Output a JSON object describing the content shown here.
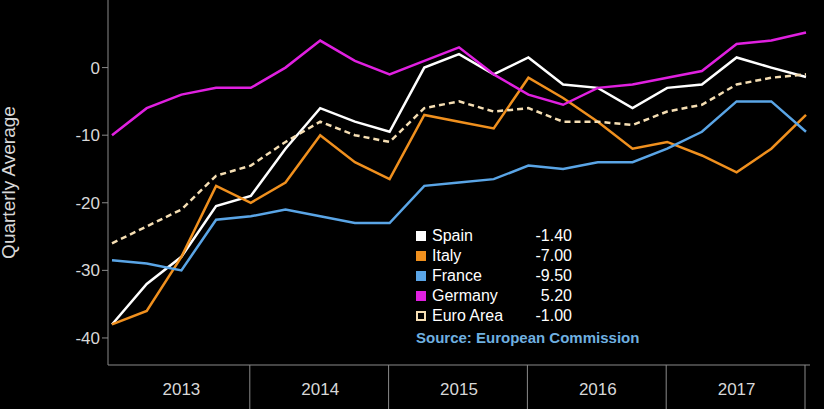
{
  "chart_data": {
    "type": "line",
    "y_label": "Quarterly Average",
    "source": "Source: European Commission",
    "legend": "lower center",
    "grid": false,
    "categories": [
      null,
      null,
      "2013",
      null,
      null,
      null,
      "2014",
      null,
      null,
      null,
      "2015",
      null,
      null,
      null,
      "2016",
      null,
      null,
      null,
      "2017",
      null,
      null
    ],
    "ylim": [
      -44,
      10
    ],
    "yticks": [
      -40,
      -30,
      -20,
      -10,
      0
    ],
    "series": [
      {
        "name": "Spain",
        "legend_value": "-1.40",
        "color": "#ffffff",
        "line_style": "solid",
        "values": [
          -38,
          -32,
          -28,
          -20.5,
          -19,
          -12,
          -6,
          -8,
          -9.5,
          0,
          2,
          -1,
          1.5,
          -2.5,
          -3,
          -6,
          -3,
          -2.5,
          1.5,
          0,
          -1.4
        ]
      },
      {
        "name": "Italy",
        "legend_value": "-7.00",
        "color": "#f0901e",
        "line_style": "solid",
        "values": [
          -38,
          -36,
          -28,
          -17.5,
          -20,
          -17,
          -10,
          -14,
          -16.5,
          -7,
          -8,
          -9,
          -1.5,
          -4.5,
          -8,
          -12,
          -11,
          -13,
          -15.5,
          -12,
          -7
        ]
      },
      {
        "name": "France",
        "legend_value": "-9.50",
        "color": "#5aa5e6",
        "line_style": "solid",
        "values": [
          -28.5,
          -29,
          -30,
          -22.5,
          -22,
          -21,
          -22,
          -23,
          -23,
          -17.5,
          -17,
          -16.5,
          -14.5,
          -15,
          -14,
          -14,
          -12,
          -9.5,
          -5,
          -5,
          -9.5
        ]
      },
      {
        "name": "Germany",
        "legend_value": "5.20",
        "color": "#e020e0",
        "line_style": "solid",
        "values": [
          -10,
          -6,
          -4,
          -3,
          -3,
          0,
          4,
          1,
          -1,
          1,
          3,
          -1,
          -4,
          -5.5,
          -3,
          -2.5,
          -1.5,
          -0.5,
          3.5,
          4,
          5.2
        ]
      },
      {
        "name": "Euro Area",
        "legend_value": "-1.00",
        "color": "#f5deb3",
        "line_style": "dashed",
        "values": [
          -26,
          -23.5,
          -21,
          -16,
          -14.5,
          -11,
          -8,
          -10,
          -11,
          -6,
          -5,
          -6.5,
          -6,
          -8,
          -8,
          -8.5,
          -6.5,
          -5.5,
          -2.5,
          -1.5,
          -1
        ]
      }
    ]
  }
}
